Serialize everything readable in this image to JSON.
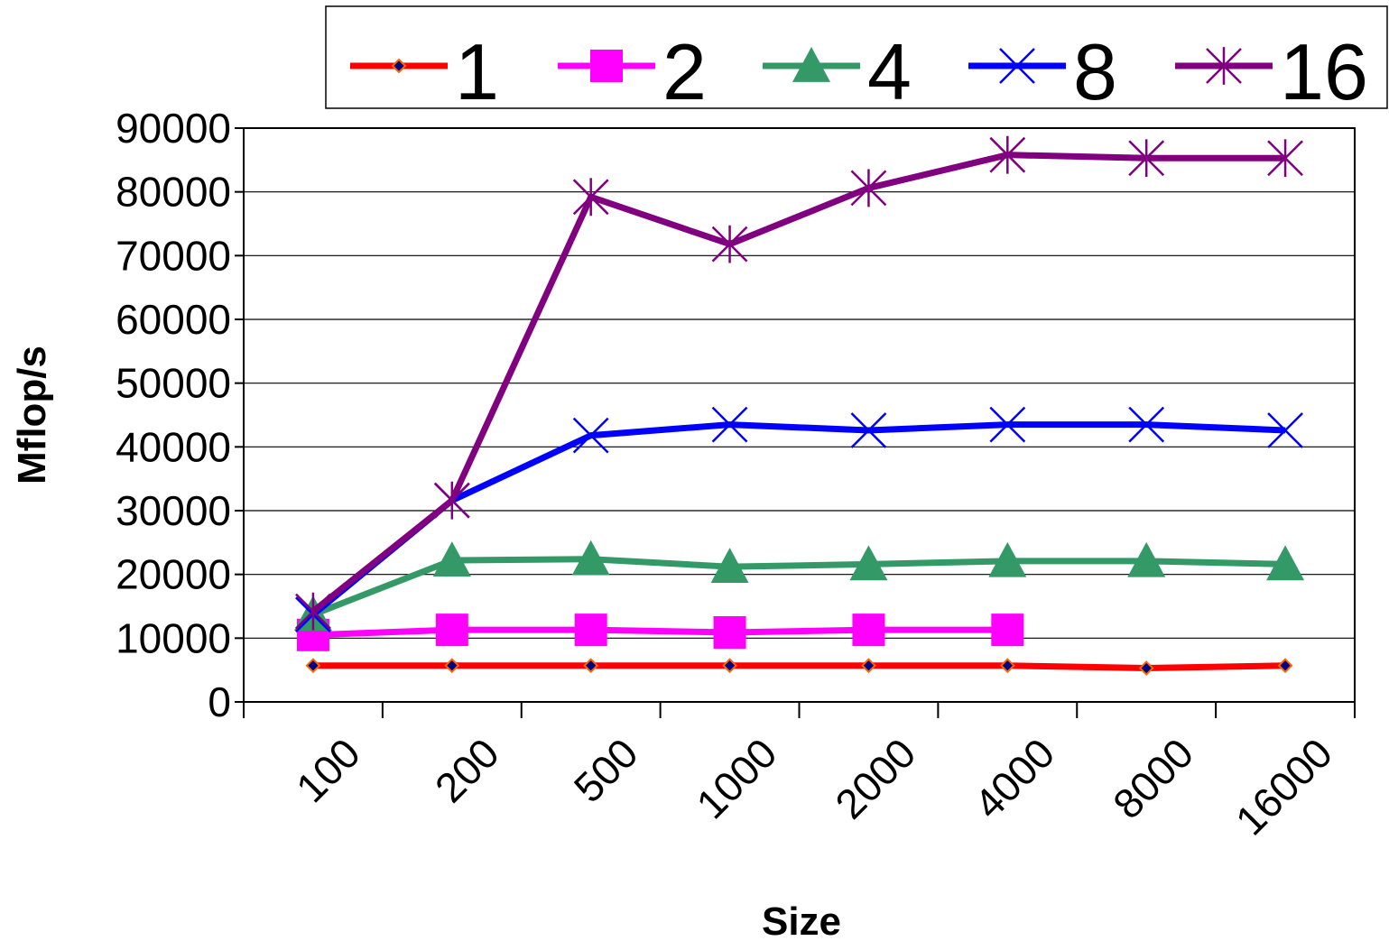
{
  "chart_data": {
    "type": "line",
    "xlabel": "Size",
    "ylabel": "Mflop/s",
    "categories": [
      "100",
      "200",
      "500",
      "1000",
      "2000",
      "4000",
      "8000",
      "16000"
    ],
    "ylim": [
      0,
      90000
    ],
    "yticks": [
      0,
      10000,
      20000,
      30000,
      40000,
      50000,
      60000,
      70000,
      80000,
      90000
    ],
    "grid": "horizontal",
    "legend_position": "top",
    "series": [
      {
        "name": "1",
        "color": "#ff0000",
        "marker": "diamond",
        "values": [
          5700,
          5700,
          5700,
          5700,
          5700,
          5700,
          5300,
          5700
        ]
      },
      {
        "name": "2",
        "color": "#ff00ff",
        "marker": "square",
        "values": [
          10500,
          11300,
          11300,
          10900,
          11300,
          11300,
          null,
          null
        ]
      },
      {
        "name": "4",
        "color": "#339966",
        "marker": "triangle",
        "values": [
          13700,
          22200,
          22400,
          21200,
          21600,
          22100,
          22100,
          21600
        ]
      },
      {
        "name": "8",
        "color": "#0000ff",
        "marker": "x",
        "values": [
          13700,
          31600,
          41800,
          43500,
          42600,
          43500,
          43500,
          42600
        ]
      },
      {
        "name": "16",
        "color": "#800080",
        "marker": "star",
        "values": [
          14200,
          31600,
          79200,
          71800,
          80600,
          85800,
          85300,
          85300
        ]
      }
    ]
  }
}
